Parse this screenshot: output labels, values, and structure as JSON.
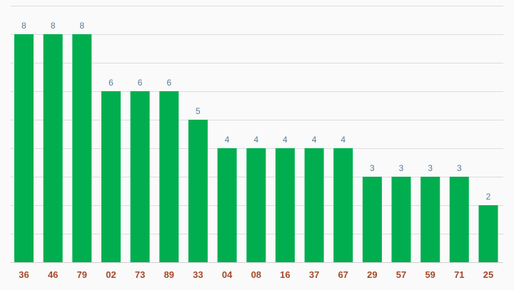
{
  "chart_data": {
    "type": "bar",
    "categories": [
      "36",
      "46",
      "79",
      "02",
      "73",
      "89",
      "33",
      "04",
      "08",
      "16",
      "37",
      "67",
      "29",
      "57",
      "59",
      "71",
      "25"
    ],
    "values": [
      8,
      8,
      8,
      6,
      6,
      6,
      5,
      4,
      4,
      4,
      4,
      4,
      3,
      3,
      3,
      3,
      2
    ],
    "title": "",
    "xlabel": "",
    "ylabel": "",
    "ylim": [
      0,
      9
    ],
    "grid": true,
    "legend": "none"
  },
  "colors": {
    "bar": "#00ae4f",
    "value_label": "#5b7a93",
    "tick_label": "#a34a2c",
    "grid": "#dcdcdc",
    "background": "#fafafa"
  }
}
